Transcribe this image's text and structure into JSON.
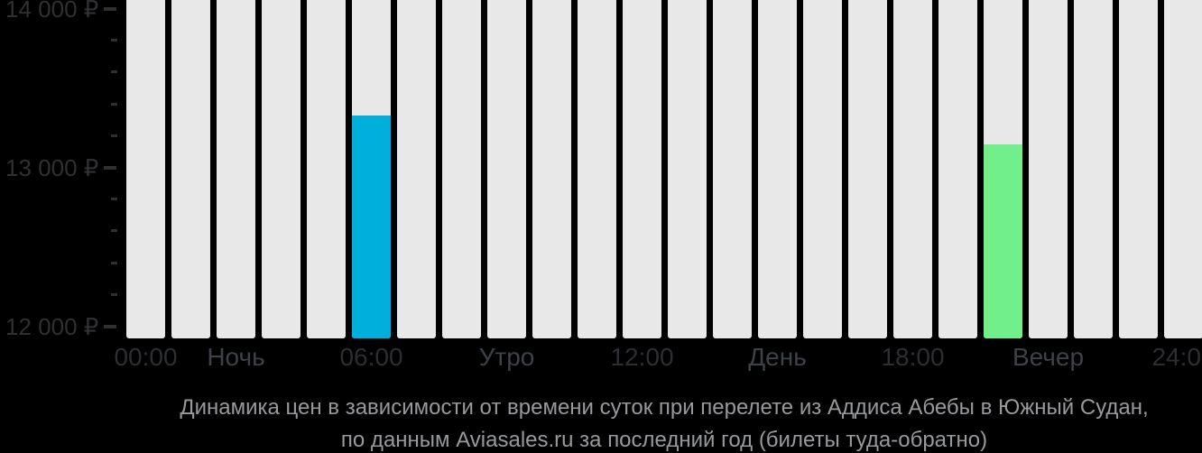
{
  "chart_data": {
    "type": "bar",
    "title": "Динамика цен в зависимости от времени суток при перелете из Аддиса Абебы в Южный Судан,",
    "subtitle": "по данным Aviasales.ru за последний год (билеты туда-обратно)",
    "currency": "₽",
    "bar_count": 24,
    "bars": [
      {
        "index": 5,
        "time_label": "06:00",
        "value": 13330,
        "color": "#00afdb"
      },
      {
        "index": 19,
        "time_label": "",
        "value": 13150,
        "color": "#70ef8b"
      }
    ],
    "empty_bar_color": "#e8e8e8",
    "y_axis": {
      "tick_labels": [
        "14 000 ₽",
        "13 000 ₽",
        "12 000 ₽"
      ],
      "tick_values": [
        14000,
        13000,
        12000
      ],
      "minor_tick_values": [
        13800,
        13600,
        13400,
        13200,
        12800,
        12600,
        12400,
        12200
      ],
      "minor_tick_step": 200,
      "approx_range": [
        11930,
        14060
      ]
    },
    "x_axis": {
      "labels": [
        {
          "text": "00:00",
          "bar_index": 0,
          "kind": "time"
        },
        {
          "text": "Ночь",
          "bar_index": 2,
          "kind": "period"
        },
        {
          "text": "06:00",
          "bar_index": 5,
          "kind": "time"
        },
        {
          "text": "Утро",
          "bar_index": 8,
          "kind": "period"
        },
        {
          "text": "12:00",
          "bar_index": 11,
          "kind": "time"
        },
        {
          "text": "День",
          "bar_index": 14,
          "kind": "period"
        },
        {
          "text": "18:00",
          "bar_index": 17,
          "kind": "time"
        },
        {
          "text": "Вечер",
          "bar_index": 20,
          "kind": "period"
        },
        {
          "text": "24:00",
          "bar_index": 23,
          "kind": "time"
        }
      ]
    },
    "grid": false,
    "legend": "none"
  },
  "colors": {
    "background": "#000000",
    "bar_track": "#e8e8e8",
    "bar_highlight_blue": "#00afdb",
    "bar_highlight_green": "#70ef8b",
    "y_axis_label": "#2f3032",
    "x_time_label": "#2c2e33",
    "x_period_label": "#3e4147",
    "caption_text": "#97999c"
  }
}
